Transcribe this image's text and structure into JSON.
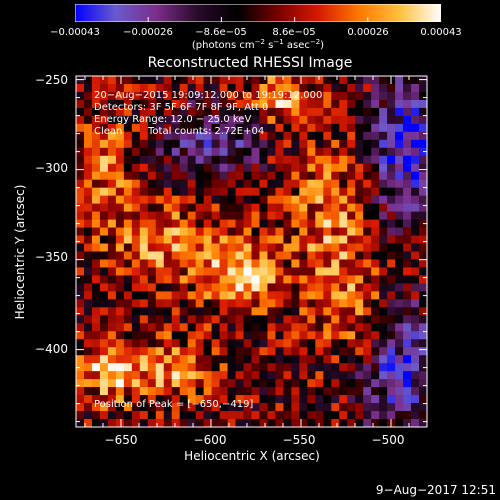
{
  "chart_data": {
    "type": "heatmap",
    "title": "Reconstructed RHESSI Image",
    "xlabel": "Heliocentric X (arcsec)",
    "ylabel": "Heliocentric Y (arcsec)",
    "xlim": [
      -675,
      -480
    ],
    "ylim": [
      -443,
      -248
    ],
    "x_ticks": [
      -650,
      -600,
      -550,
      -500
    ],
    "x_tick_labels": [
      "−650",
      "−600",
      "−550",
      "−500"
    ],
    "y_ticks": [
      -250,
      -300,
      -350,
      -400
    ],
    "y_tick_labels": [
      "−250",
      "−300",
      "−350",
      "−400"
    ],
    "colorbar": {
      "range": [
        -0.00043,
        0.00043
      ],
      "tick_labels": [
        "−0.00043",
        "−0.00026",
        "−8.6e−05",
        "8.6e−05",
        "0.00026",
        "0.00043"
      ],
      "units_main": "(photons cm",
      "units_sup1": "−2",
      "units_mid1": " s",
      "units_sup2": "−1",
      "units_mid2": " asec",
      "units_sup3": "−2",
      "units_end": ")",
      "colormap": [
        "#0000ff",
        "#6a5acd",
        "#7a2e8a",
        "#2a0a2a",
        "#000000",
        "#7a0000",
        "#d81a00",
        "#ff7a00",
        "#ffc040",
        "#ffffff"
      ]
    },
    "annotations": {
      "time": "20−Aug−2015 19:09:12.000 to 19:19:12.000",
      "detectors": "Detectors: 3F 5F 6F 7F 8F 9F, Att 0",
      "energy": "Energy Range: 12.0 − 25.0 keV",
      "clean_label": "Clean",
      "counts": "Total counts: 2.72E+04",
      "peak": "Position of Peak = [−650,−419]"
    },
    "grid": false
  },
  "footer": {
    "date_stamp": "9−Aug−2017 12:51"
  }
}
